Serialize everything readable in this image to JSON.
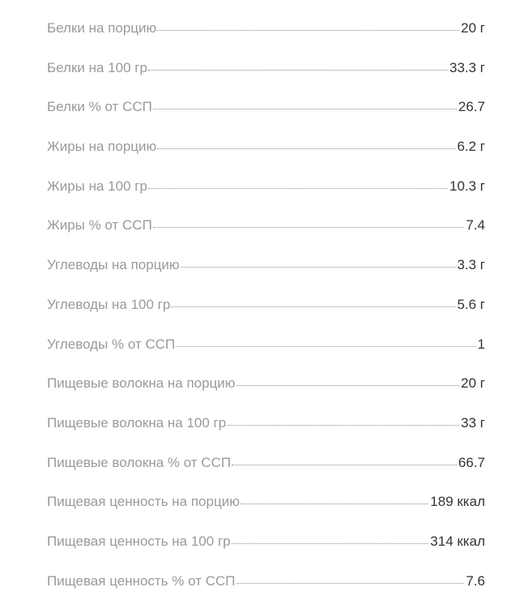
{
  "nutrition": {
    "rows": [
      {
        "label": "Белки на порцию",
        "value": "20 г"
      },
      {
        "label": "Белки на 100 гр",
        "value": "33.3 г"
      },
      {
        "label": "Белки % от ССП",
        "value": "26.7"
      },
      {
        "label": "Жиры на порцию",
        "value": "6.2 г"
      },
      {
        "label": "Жиры на 100 гр",
        "value": "10.3 г"
      },
      {
        "label": "Жиры % от ССП",
        "value": "7.4"
      },
      {
        "label": "Углеводы на порцию",
        "value": "3.3 г"
      },
      {
        "label": "Углеводы на 100 гр",
        "value": "5.6 г"
      },
      {
        "label": "Углеводы % от ССП",
        "value": "1"
      },
      {
        "label": "Пищевые волокна на порцию",
        "value": "20 г"
      },
      {
        "label": "Пищевые волокна на 100 гр",
        "value": "33 г"
      },
      {
        "label": "Пищевые волокна % от ССП",
        "value": "66.7"
      },
      {
        "label": "Пищевая ценность на порцию",
        "value": "189 ккал"
      },
      {
        "label": "Пищевая ценность на 100 гр",
        "value": "314 ккал"
      },
      {
        "label": "Пищевая ценность % от ССП",
        "value": "7.6"
      }
    ]
  },
  "colors": {
    "label": "#9a9a9a",
    "value": "#333333",
    "leader": "#8c8c8c"
  }
}
